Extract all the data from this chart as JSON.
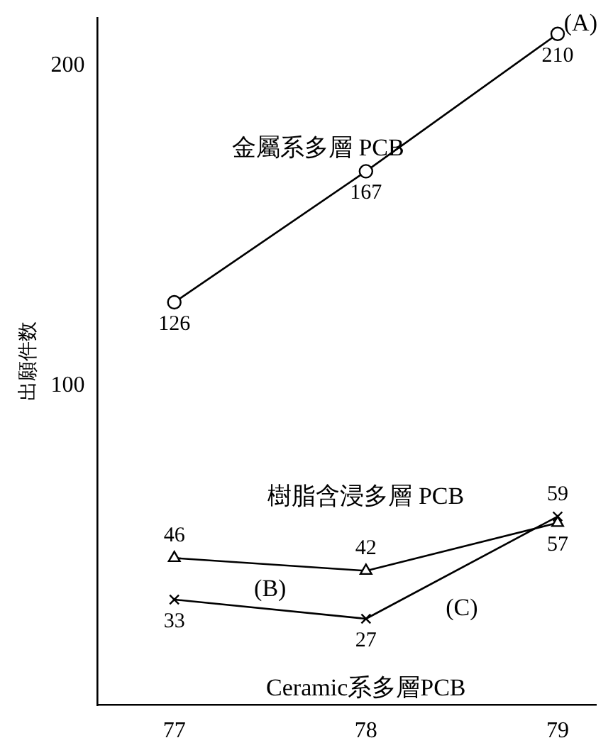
{
  "chart_data": {
    "type": "line",
    "ylabel": "出願件数",
    "x": [
      77,
      78,
      79
    ],
    "xlim": [
      76.6,
      79.2
    ],
    "xticks": [
      77,
      78,
      79
    ],
    "ylim": [
      0,
      215
    ],
    "yticks": [
      100,
      200
    ],
    "grid": false,
    "legend": false,
    "data_labels": true,
    "line_style": "solid",
    "series": [
      {
        "color": "#000000",
        "marker": "circle",
        "values": [
          126,
          167,
          210
        ]
      },
      {
        "color": "#000000",
        "marker": "triangle",
        "values": [
          46,
          42,
          57
        ]
      },
      {
        "color": "#000000",
        "marker": "cross",
        "values": [
          33,
          27,
          59
        ]
      }
    ],
    "annotations": [
      "金屬系多層 PCB",
      "(A)",
      "樹脂含浸多層 PCB",
      "(B)",
      "(C)",
      "Ceramic系多層PCB"
    ]
  }
}
